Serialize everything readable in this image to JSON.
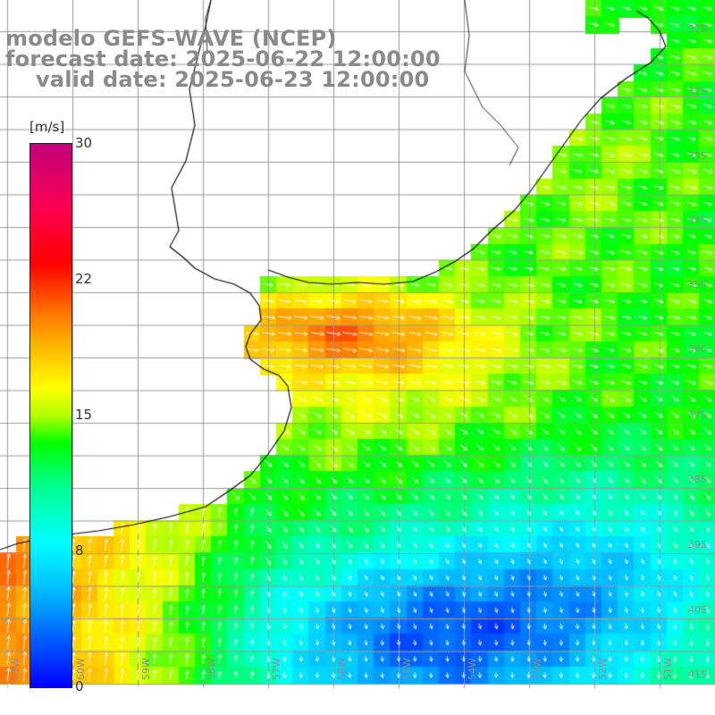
{
  "titles": {
    "line1": "modelo GEFS-WAVE (NCEP)",
    "line2": "forecast date: 2025-06-22 12:00:00",
    "line3": "valid date: 2025-06-23 12:00:00"
  },
  "colorbar": {
    "unit": "[m/s]",
    "ticks": [
      "30",
      "22",
      "15",
      "8",
      "0"
    ],
    "tick_values": [
      30,
      22,
      15,
      8,
      0
    ]
  },
  "longitude_labels": [
    "61W",
    "60W",
    "59W",
    "58W",
    "57W",
    "56W",
    "55W",
    "54W",
    "53W",
    "52W",
    "51W"
  ],
  "latitude_labels": [
    "32S",
    "33S",
    "34S",
    "35S",
    "36S",
    "37S",
    "38S",
    "39S",
    "40S",
    "41S"
  ],
  "colors": {
    "land": "#ffffff",
    "grid": "#9a9a9a",
    "coast": "#000000",
    "vectors": "#ffffff",
    "title_text": "#8a8a8a"
  }
}
